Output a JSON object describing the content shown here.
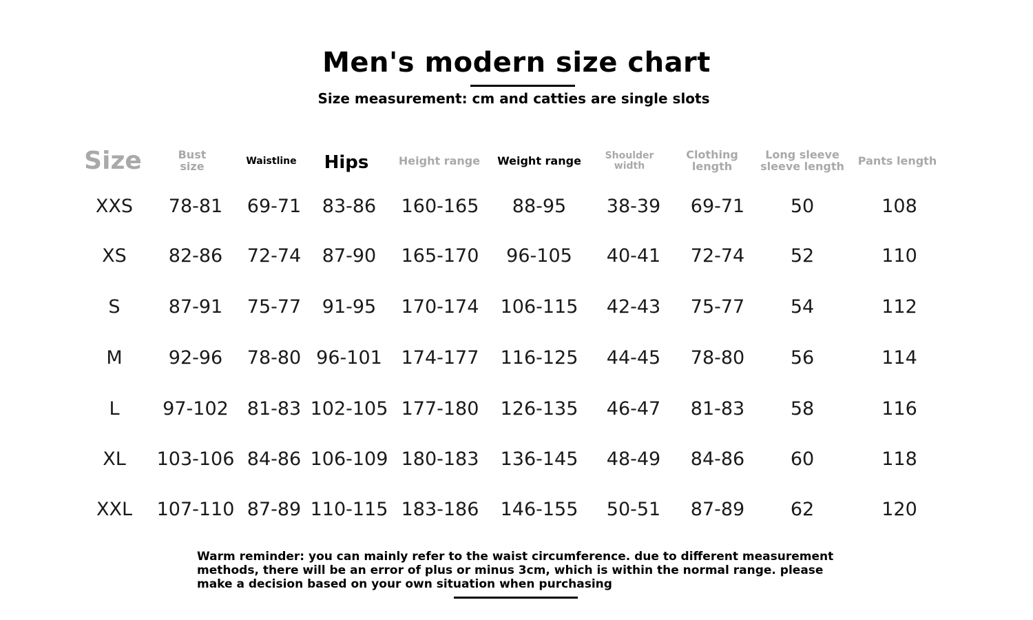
{
  "title": "Men's modern size chart",
  "subtitle": "Size measurement: cm and catties are single slots",
  "table": {
    "headers": [
      "Size",
      "Bust\nsize",
      "Waistline",
      "Hips",
      "Height range",
      "Weight range",
      "Shoulder\nwidth",
      "Clothing\nlength",
      "Long sleeve\nsleeve length",
      "Pants length"
    ],
    "rows": [
      [
        "XXS",
        "78-81",
        "69-71",
        "83-86",
        "160-165",
        "88-95",
        "38-39",
        "69-71",
        "50",
        "108"
      ],
      [
        "XS",
        "82-86",
        "72-74",
        "87-90",
        "165-170",
        "96-105",
        "40-41",
        "72-74",
        "52",
        "110"
      ],
      [
        "S",
        "87-91",
        "75-77",
        "91-95",
        "170-174",
        "106-115",
        "42-43",
        "75-77",
        "54",
        "112"
      ],
      [
        "M",
        "92-96",
        "78-80",
        "96-101",
        "174-177",
        "116-125",
        "44-45",
        "78-80",
        "56",
        "114"
      ],
      [
        "L",
        "97-102",
        "81-83",
        "102-105",
        "177-180",
        "126-135",
        "46-47",
        "81-83",
        "58",
        "116"
      ],
      [
        "XL",
        "103-106",
        "84-86",
        "106-109",
        "180-183",
        "136-145",
        "48-49",
        "84-86",
        "60",
        "118"
      ],
      [
        "XXL",
        "107-110",
        "87-89",
        "110-115",
        "183-186",
        "146-155",
        "50-51",
        "87-89",
        "62",
        "120"
      ]
    ]
  },
  "reminder": "Warm reminder: you can mainly refer to the waist circumference. due to different measurement methods, there will be an error of plus or minus 3cm, which is within the normal range. please make a decision based on your own situation when purchasing"
}
